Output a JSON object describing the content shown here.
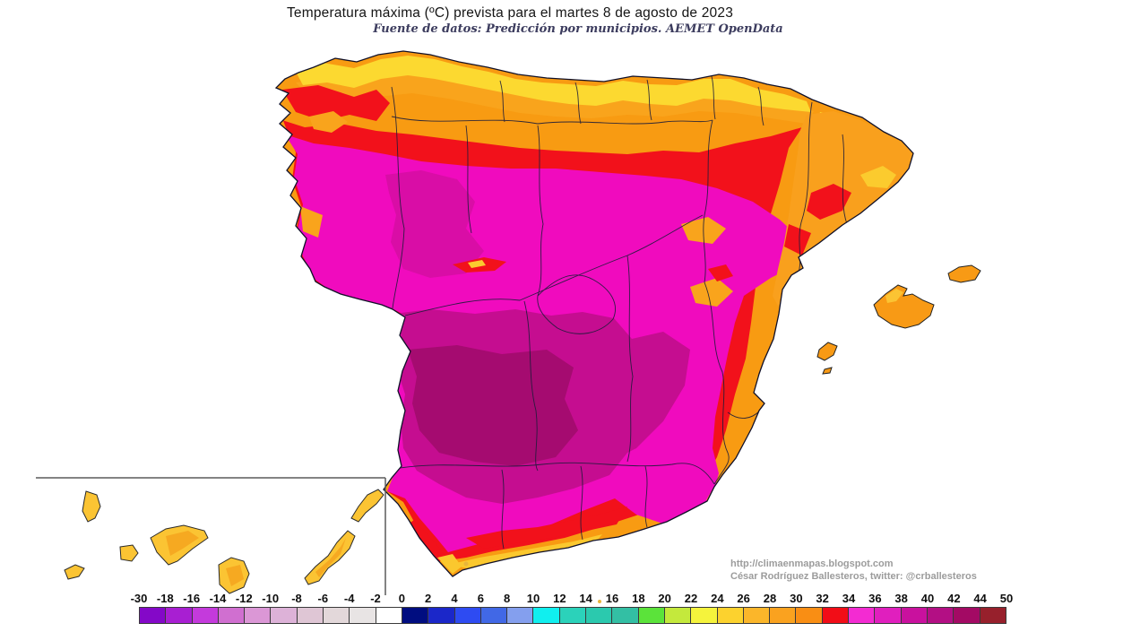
{
  "title": "Temperatura máxima (ºC) prevista para el martes 8 de agosto de 2023",
  "subtitle": "Fuente de datos: Predicción por municipios. AEMET OpenData",
  "attribution": {
    "url": "http://climaenmapas.blogspot.com",
    "author": "César Rodríguez Ballesteros, twitter: @crballesteros"
  },
  "legend": {
    "unit": "ºC",
    "boundaries": [
      "-30",
      "-18",
      "-16",
      "-14",
      "-12",
      "-10",
      "-8",
      "-6",
      "-4",
      "-2",
      "0",
      "2",
      "4",
      "6",
      "8",
      "10",
      "12",
      "14",
      "16",
      "18",
      "20",
      "22",
      "24",
      "26",
      "28",
      "30",
      "32",
      "34",
      "36",
      "38",
      "40",
      "42",
      "44",
      "50"
    ],
    "cell_colors": [
      "#8408C8",
      "#A81FD2",
      "#C43ADC",
      "#D06FD0",
      "#DB97D6",
      "#DDB2D8",
      "#DFC6D5",
      "#E3D8DA",
      "#E8E4E4",
      "#FFFFFF",
      "#000D80",
      "#1B27C9",
      "#2E4BF2",
      "#4168E6",
      "#849FEE",
      "#10EFEF",
      "#2BD2BA",
      "#2BC9AE",
      "#33BFA4",
      "#5BE33A",
      "#C4E93C",
      "#F5F33C",
      "#FCD22E",
      "#FBB62A",
      "#FAA21F",
      "#F98E14",
      "#F20D17",
      "#F32BD2",
      "#E01FBE",
      "#C9119E",
      "#B30F84",
      "#A30A64",
      "#97202C"
    ]
  },
  "map": {
    "areas": [
      {
        "name": "cantabrian-coast",
        "approx_temp": "22-26",
        "color": "#FCD930"
      },
      {
        "name": "northern-red-band",
        "approx_temp": "32-34",
        "color": "#F2111B"
      },
      {
        "name": "northern-plateau",
        "approx_temp": "34-36",
        "color": "#F00BBE"
      },
      {
        "name": "southwest-interior",
        "approx_temp": "38-40",
        "color": "#C50D90"
      },
      {
        "name": "guadalquivir-core",
        "approx_temp": "40-42",
        "color": "#A50B70"
      },
      {
        "name": "catalonia-northeast",
        "approx_temp": "28-32",
        "color": "#F9A01D"
      },
      {
        "name": "mediterranean-coast-fringe",
        "approx_temp": "28-34",
        "color": "#F9A01D"
      },
      {
        "name": "balearic-islands",
        "approx_temp": "28-32",
        "color": "#F89A15"
      },
      {
        "name": "canary-islands",
        "approx_temp": "24-28",
        "color": "#FBC433"
      }
    ]
  }
}
